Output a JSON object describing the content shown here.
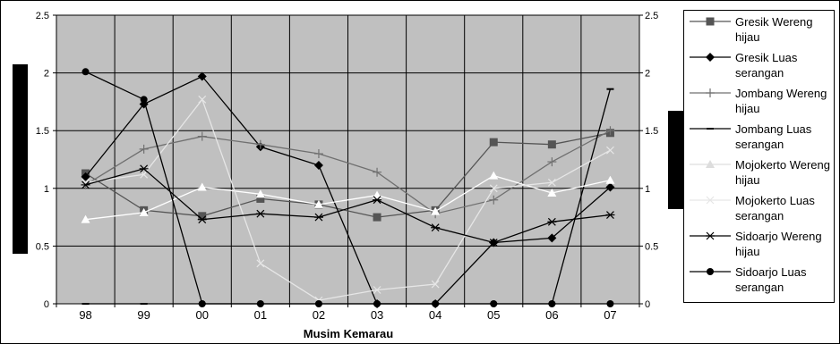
{
  "chart_data": {
    "type": "line",
    "xlabel": "Musim Kemarau",
    "categories": [
      "98",
      "99",
      "00",
      "01",
      "02",
      "03",
      "04",
      "05",
      "06",
      "07"
    ],
    "ylim": [
      0,
      2.5
    ],
    "yticks": [
      "0",
      "0.5",
      "1",
      "1.5",
      "2",
      "2.5"
    ],
    "secondary_yticks": [
      "0",
      "0.5",
      "1",
      "1.5",
      "2",
      "2.5"
    ],
    "grid": true,
    "plot_background": "#c0c0c0",
    "legend_position": "right",
    "series": [
      {
        "name": "Gresik Wereng hijau",
        "color": "#555555",
        "marker": "square",
        "values": [
          1.13,
          0.81,
          0.76,
          0.91,
          0.86,
          0.75,
          0.81,
          1.4,
          1.38,
          1.48
        ]
      },
      {
        "name": "Gresik Luas serangan",
        "color": "#000000",
        "marker": "diamond",
        "values": [
          1.1,
          1.73,
          1.97,
          1.36,
          1.2,
          0,
          0,
          0.53,
          0.57,
          1.01
        ]
      },
      {
        "name": "Jombang Wereng hijau",
        "color": "#707070",
        "marker": "plus",
        "values": [
          1.03,
          1.34,
          1.45,
          1.38,
          1.3,
          1.14,
          0.78,
          0.9,
          1.23,
          1.5
        ]
      },
      {
        "name": "Jombang Luas serangan",
        "color": "#000000",
        "marker": "dash",
        "values": [
          0,
          0,
          0,
          0,
          0,
          0,
          0,
          0,
          0,
          1.86
        ]
      },
      {
        "name": "Mojokerto Wereng hijau",
        "color": "#ffffff",
        "marker": "triangle",
        "values": [
          0.73,
          0.79,
          1.01,
          0.95,
          0.86,
          0.94,
          0.8,
          1.11,
          0.96,
          1.07
        ]
      },
      {
        "name": "Mojokerto Luas serangan",
        "color": "#e6e6e6",
        "marker": "x",
        "values": [
          1.05,
          1.12,
          1.77,
          0.35,
          0.03,
          0.12,
          0.17,
          1.0,
          1.05,
          1.33
        ]
      },
      {
        "name": "Sidoarjo Wereng hijau",
        "color": "#000000",
        "marker": "star",
        "values": [
          1.03,
          1.17,
          0.73,
          0.78,
          0.75,
          0.9,
          0.66,
          0.53,
          0.71,
          0.77
        ]
      },
      {
        "name": "Sidoarjo Luas serangan",
        "color": "#000000",
        "marker": "circle",
        "values": [
          2.01,
          1.77,
          0,
          0,
          0,
          0,
          0,
          0,
          0,
          0
        ]
      }
    ]
  }
}
